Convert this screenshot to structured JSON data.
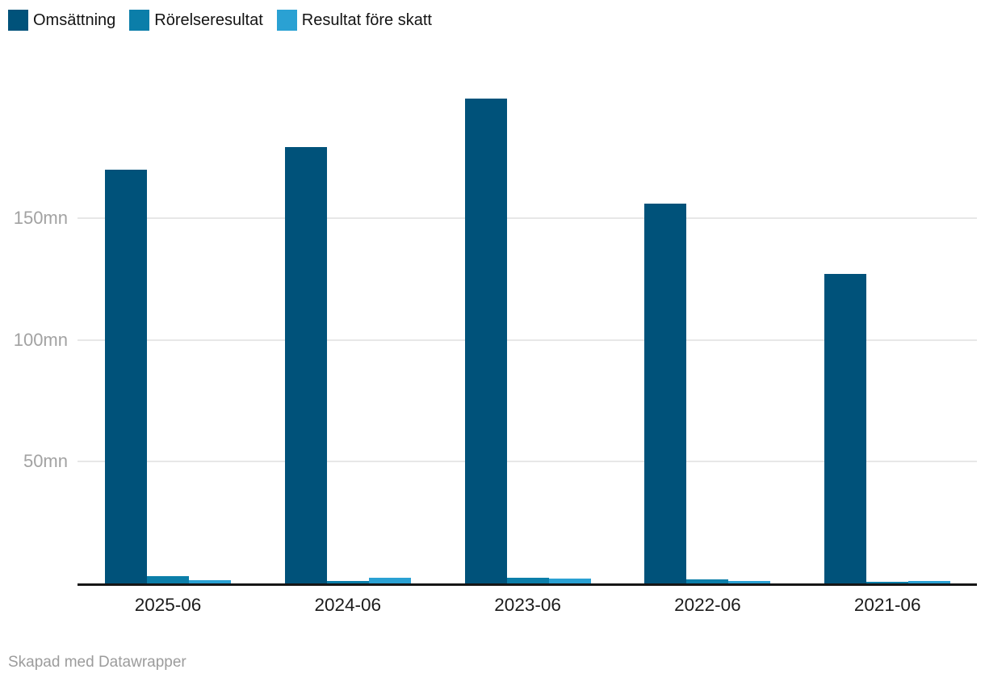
{
  "chart_data": {
    "type": "bar",
    "categories": [
      "2025-06",
      "2024-06",
      "2023-06",
      "2022-06",
      "2021-06"
    ],
    "series": [
      {
        "name": "Omsättning",
        "color": "#00527a",
        "values": [
          170,
          179,
          199,
          156,
          127
        ]
      },
      {
        "name": "Rörelseresultat",
        "color": "#0b7ea9",
        "values": [
          3.0,
          1.1,
          2.4,
          1.6,
          0.5
        ]
      },
      {
        "name": "Resultat före skatt",
        "color": "#2aa1d3",
        "values": [
          1.4,
          2.2,
          2.0,
          1.0,
          0.9
        ]
      }
    ],
    "title": "",
    "xlabel": "",
    "ylabel": "",
    "unit": "mn",
    "y_ticks": [
      {
        "value": 50,
        "label": "50mn"
      },
      {
        "value": 100,
        "label": "100mn"
      },
      {
        "value": 150,
        "label": "150mn"
      }
    ],
    "ylim": [
      0,
      207
    ],
    "grid": true,
    "legend_position": "top-left"
  },
  "footer": {
    "credit": "Skapad med Datawrapper"
  },
  "colors": {
    "series_1": "#00527a",
    "series_2": "#0b7ea9",
    "series_3": "#2aa1d3",
    "gridline": "#e7e7e7",
    "baseline": "#161616",
    "y_tick_text": "#a2a2a2",
    "x_tick_text": "#1b1b1b",
    "credit_text": "#9c9c9c"
  }
}
